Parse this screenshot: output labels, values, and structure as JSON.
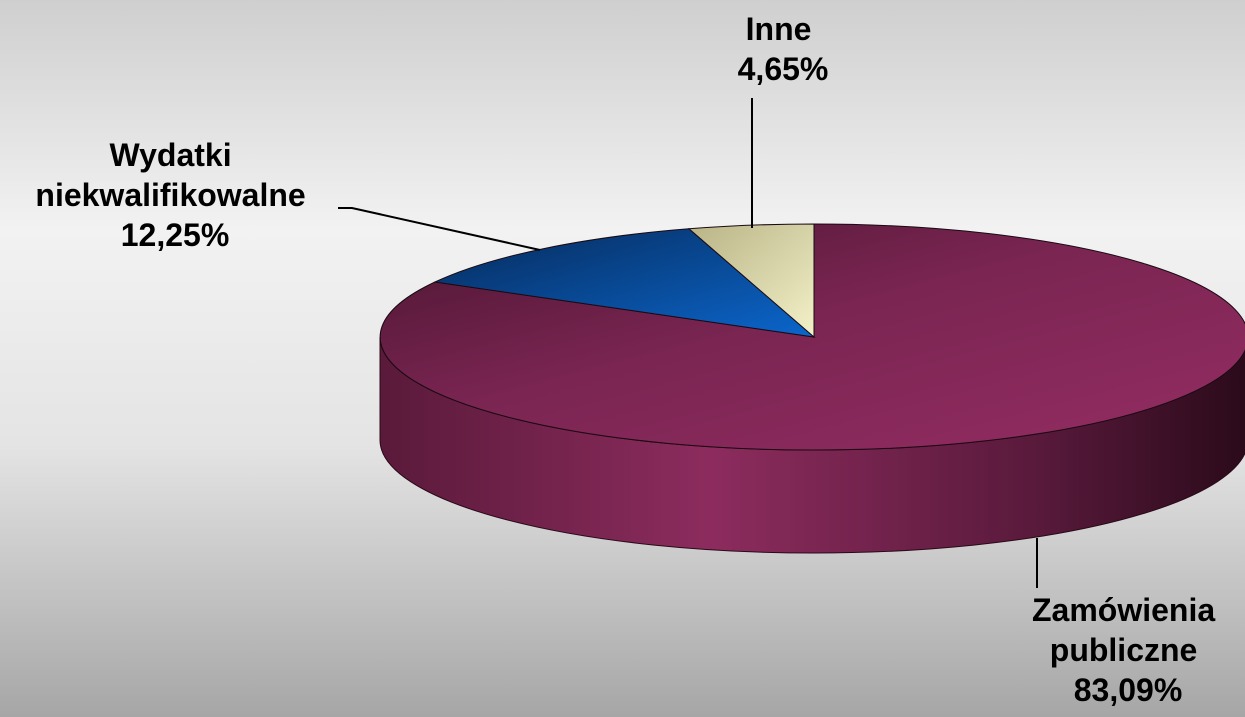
{
  "chart_data": {
    "type": "pie",
    "title": "",
    "slices": [
      {
        "name": "Zamówienia publiczne",
        "label_lines": [
          "Zamówienia",
          "publiczne"
        ],
        "value": 83.09,
        "value_label": "83,09%",
        "color": "#8a2a5c"
      },
      {
        "name": "Wydatki niekwalifikowalne",
        "label_lines": [
          "Wydatki",
          "niekwalifikowalne"
        ],
        "value": 12.25,
        "value_label": "12,25%",
        "color": "#0a5cb8"
      },
      {
        "name": "Inne",
        "label_lines": [
          "Inne"
        ],
        "value": 4.65,
        "value_label": "4,65%",
        "color": "#e6e2b4"
      }
    ],
    "style": "3d-pie",
    "legend": "none"
  }
}
